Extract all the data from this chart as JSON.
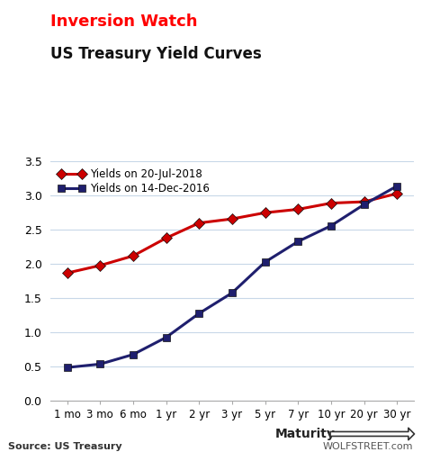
{
  "title_line1": "Inversion Watch",
  "title_line2": "US Treasury Yield Curves",
  "title_line1_color": "#ff0000",
  "title_line2_color": "#111111",
  "x_labels": [
    "1 mo",
    "3 mo",
    "6 mo",
    "1 yr",
    "2 yr",
    "3 yr",
    "5 yr",
    "7 yr",
    "10 yr",
    "20 yr",
    "30 yr"
  ],
  "x_positions": [
    0,
    1,
    2,
    3,
    4,
    5,
    6,
    7,
    8,
    9,
    10
  ],
  "series_2018": {
    "label": "Yields on 20-Jul-2018",
    "values": [
      1.87,
      1.98,
      2.12,
      2.38,
      2.6,
      2.66,
      2.75,
      2.8,
      2.89,
      2.91,
      3.03
    ],
    "color": "#cc0000",
    "marker": "D",
    "marker_size": 6,
    "linewidth": 2.2
  },
  "series_2016": {
    "label": "Yields on 14-Dec-2016",
    "values": [
      0.49,
      0.54,
      0.68,
      0.93,
      1.28,
      1.58,
      2.03,
      2.33,
      2.56,
      2.87,
      3.14
    ],
    "color": "#1f1f6e",
    "marker": "s",
    "marker_size": 6,
    "linewidth": 2.2
  },
  "ylim": [
    0,
    3.5
  ],
  "yticks": [
    0,
    0.5,
    1.0,
    1.5,
    2.0,
    2.5,
    3.0,
    3.5
  ],
  "background_color": "#ffffff",
  "grid_color": "#c8d8e8",
  "source_text": "Source: US Treasury",
  "watermark_text": "WOLFSTREET.com",
  "maturity_text": "Maturity"
}
